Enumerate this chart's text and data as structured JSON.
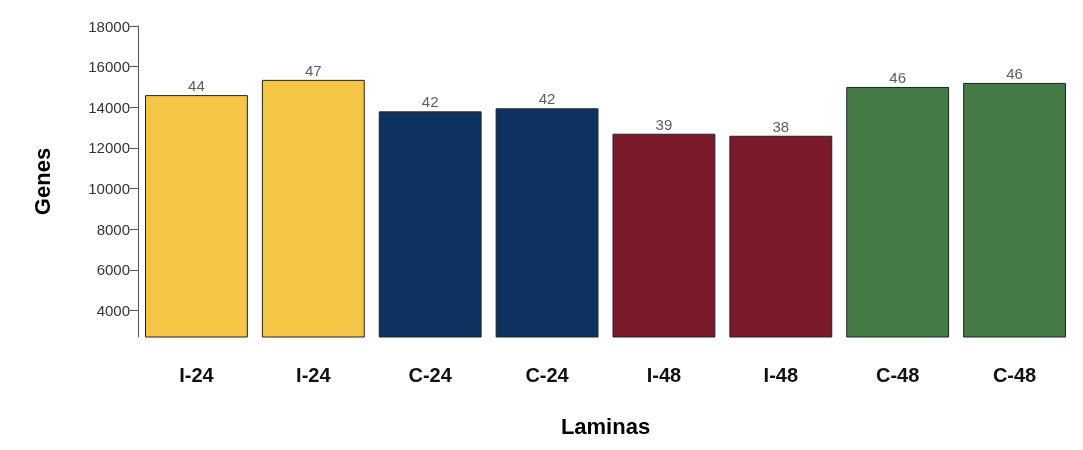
{
  "chart_data": {
    "type": "bar",
    "xlabel": "Laminas",
    "ylabel": "Genes",
    "categories": [
      "I-24",
      "I-24",
      "C-24",
      "C-24",
      "I-48",
      "I-48",
      "C-48",
      "C-48"
    ],
    "values": [
      14600,
      15350,
      13800,
      13950,
      12700,
      12600,
      15000,
      15200
    ],
    "annotations": [
      "44",
      "47",
      "42",
      "42",
      "39",
      "38",
      "46",
      "46"
    ],
    "colors": [
      "#f5c645",
      "#f5c645",
      "#0e3360",
      "#0e3360",
      "#7b1a2a",
      "#7b1a2a",
      "#437a46",
      "#437a46"
    ],
    "ylim": [
      2700,
      18000
    ],
    "yticks": [
      4000,
      6000,
      8000,
      10000,
      12000,
      14000,
      16000,
      18000
    ],
    "grid": false
  }
}
